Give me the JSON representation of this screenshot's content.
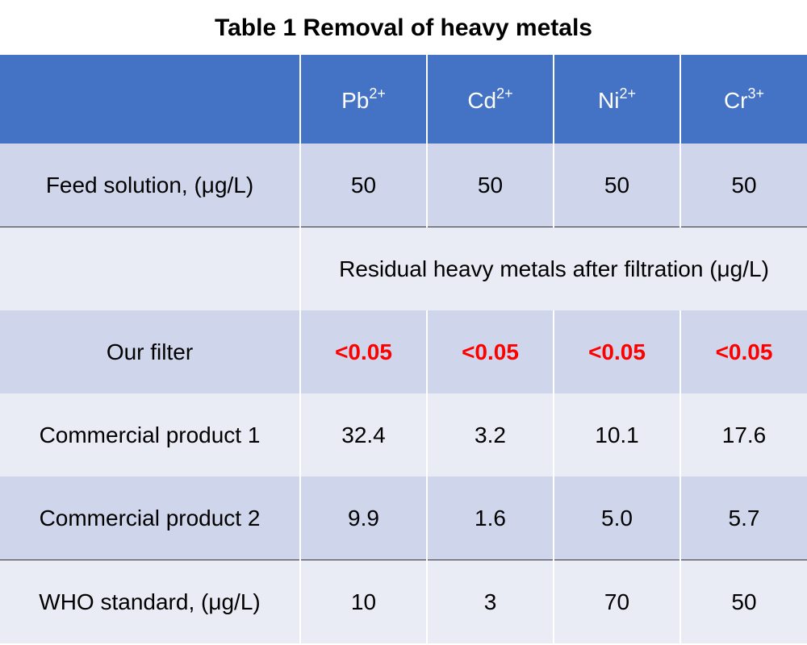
{
  "title": "Table 1 Removal of heavy metals",
  "table": {
    "header": [
      {
        "base": "Pb",
        "sup": "2+"
      },
      {
        "base": "Cd",
        "sup": "2+"
      },
      {
        "base": "Ni",
        "sup": "2+"
      },
      {
        "base": "Cr",
        "sup": "3+"
      }
    ],
    "feed": {
      "label": "Feed solution, (μg/L)",
      "values": [
        "50",
        "50",
        "50",
        "50"
      ]
    },
    "section": "Residual heavy metals after filtration (μg/L)",
    "rows": [
      {
        "label": "Our filter",
        "values": [
          "<0.05",
          "<0.05",
          "<0.05",
          "<0.05"
        ],
        "highlight": true
      },
      {
        "label": "Commercial product 1",
        "values": [
          "32.4",
          "3.2",
          "10.1",
          "17.6"
        ]
      },
      {
        "label": "Commercial product 2",
        "values": [
          "9.9",
          "1.6",
          "5.0",
          "5.7"
        ]
      }
    ],
    "standard": {
      "label": "WHO standard, (μg/L)",
      "values": [
        "10",
        "3",
        "70",
        "50"
      ]
    }
  }
}
